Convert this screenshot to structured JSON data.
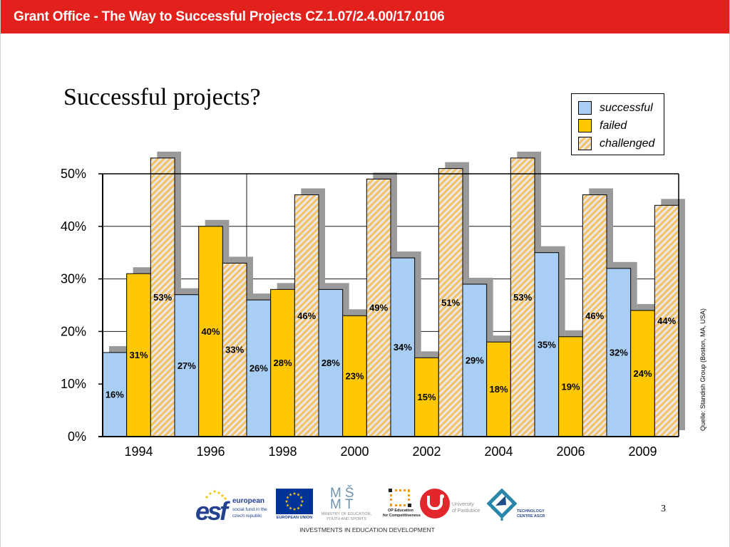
{
  "header": {
    "title": "Grant Office - The Way to Successful Projects CZ.1.07/2.4.00/17.0106"
  },
  "chart_data": {
    "type": "bar",
    "title": "Successful projects?",
    "categories": [
      "1994",
      "1996",
      "1998",
      "2000",
      "2002",
      "2004",
      "2006",
      "2009"
    ],
    "series": [
      {
        "name": "successful",
        "values": [
          16,
          27,
          26,
          28,
          34,
          29,
          35,
          32
        ],
        "color": "#a8cef4"
      },
      {
        "name": "failed",
        "values": [
          31,
          40,
          28,
          23,
          15,
          18,
          19,
          24
        ],
        "color": "#ffc800"
      },
      {
        "name": "challenged",
        "values": [
          53,
          33,
          46,
          49,
          51,
          53,
          46,
          44
        ],
        "color": "#f4c165",
        "hatch_background": "#e8e8e8"
      }
    ],
    "ylim": [
      0,
      50
    ],
    "yticks": [
      0,
      10,
      20,
      30,
      40,
      50
    ],
    "ytick_labels": [
      "0%",
      "10%",
      "20%",
      "30%",
      "40%",
      "50%"
    ],
    "value_suffix": "%",
    "data_labels": true,
    "grid": true,
    "legend_position": "top-right"
  },
  "source_note": "Quelle: Standish Group (Boston, MA, USA)",
  "colors": {
    "header_red": "#e2211c",
    "bar_shadow": "#9a9a9a",
    "axis": "#000000",
    "eu_blue": "#003399",
    "eu_star": "#ffcc00",
    "esf_star": "#f6c400"
  },
  "footer": {
    "logos": {
      "esf": {
        "mark": "esf",
        "title": "european",
        "subtitle_lines": [
          "social fund in the",
          "czech republic"
        ]
      },
      "eu": {
        "caption": "EUROPEAN UNION"
      },
      "msmt": {
        "mark_lines": [
          "MŠ",
          "MT"
        ],
        "caption_lines": [
          "MINISTRY OF EDUCATION,",
          "YOUTH AND SPORTS"
        ]
      },
      "op": {
        "caption_lines": [
          "OP Education",
          "for Competitiveness"
        ]
      },
      "upce": {
        "caption_lines": [
          "University",
          "of Pardubice"
        ]
      },
      "tc": {
        "caption_lines": [
          "TECHNOLOGY",
          "CENTRE ASCR"
        ]
      }
    },
    "tagline": "INVESTMENTS IN EDUCATION DEVELOPMENT"
  },
  "page_number": "3"
}
